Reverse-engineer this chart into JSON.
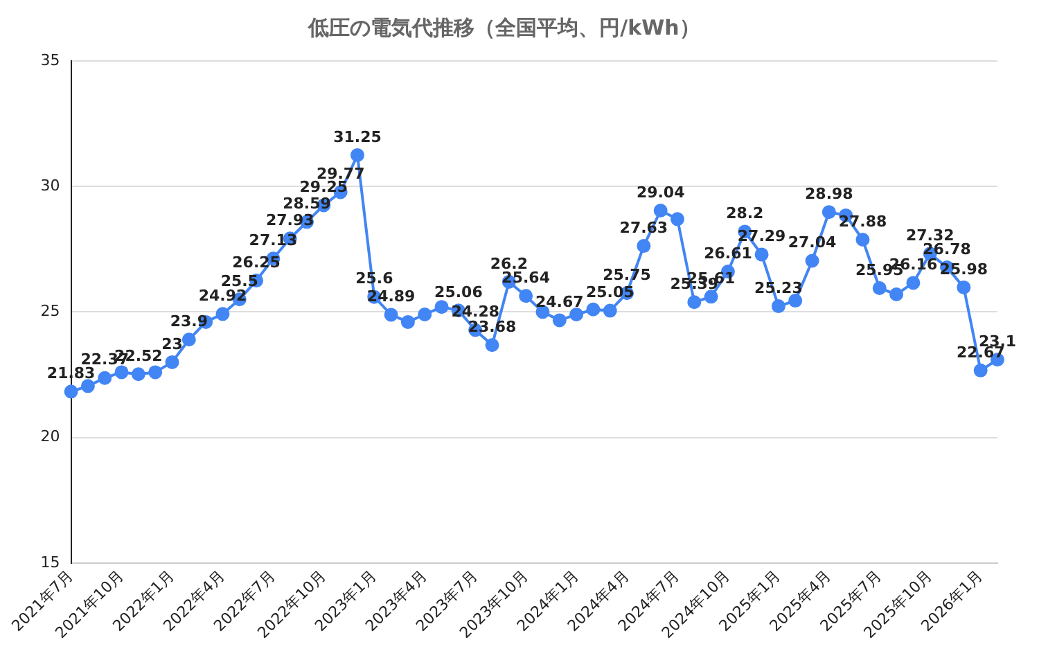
{
  "chart_data": {
    "type": "line",
    "title": "低圧の電気代推移（全国平均、円/kWh）",
    "categories": [
      "2021年7月",
      null,
      null,
      "2021年10月",
      null,
      null,
      "2022年1月",
      null,
      null,
      "2022年4月",
      null,
      null,
      "2022年7月",
      null,
      null,
      "2022年10月",
      null,
      null,
      "2023年1月",
      null,
      null,
      "2023年4月",
      null,
      null,
      "2023年7月",
      null,
      null,
      "2023年10月",
      null,
      null,
      "2024年1月",
      null,
      null,
      "2024年4月",
      null,
      null,
      "2024年7月",
      null,
      null,
      "2024年10月",
      null,
      null,
      "2025年1月",
      null,
      null,
      "2025年4月",
      null,
      null,
      "2025年7月",
      null,
      null,
      "2025年10月",
      null,
      null,
      "2026年1月",
      null
    ],
    "values": [
      21.83,
      22.05,
      22.37,
      22.6,
      22.52,
      22.6,
      23,
      23.9,
      24.6,
      24.92,
      25.5,
      26.25,
      27.13,
      27.93,
      28.59,
      29.25,
      29.77,
      31.25,
      25.6,
      24.89,
      24.6,
      24.9,
      25.2,
      25.06,
      24.28,
      23.68,
      26.2,
      25.64,
      25.0,
      24.67,
      24.9,
      25.1,
      25.05,
      25.75,
      27.63,
      29.04,
      28.7,
      25.39,
      25.61,
      26.61,
      28.2,
      27.29,
      25.23,
      25.45,
      27.04,
      28.98,
      28.85,
      27.88,
      25.95,
      25.7,
      26.16,
      27.32,
      26.78,
      25.98,
      22.67,
      23.1
    ],
    "value_labels": [
      "21.83",
      null,
      "22.37",
      null,
      "22.52",
      null,
      "23",
      "23.9",
      null,
      "24.92",
      "25.5",
      "26.25",
      "27.13",
      "27.93",
      "28.59",
      "29.25",
      "29.77",
      "31.25",
      "25.6",
      "24.89",
      null,
      null,
      null,
      "25.06",
      "24.28",
      "23.68",
      "26.2",
      "25.64",
      null,
      "24.67",
      null,
      null,
      "25.05",
      "25.75",
      "27.63",
      "29.04",
      null,
      "25.39",
      "25.61",
      "26.61",
      "28.2",
      "27.29",
      "25.23",
      null,
      "27.04",
      "28.98",
      null,
      "27.88",
      "25.95",
      null,
      "26.16",
      "27.32",
      "26.78",
      "25.98",
      "22.67",
      "23.1"
    ],
    "color": "#4285f4",
    "ylim": [
      15,
      35
    ],
    "yticks": [
      15,
      20,
      25,
      30,
      35
    ],
    "grid": "y",
    "marker": "circle"
  }
}
